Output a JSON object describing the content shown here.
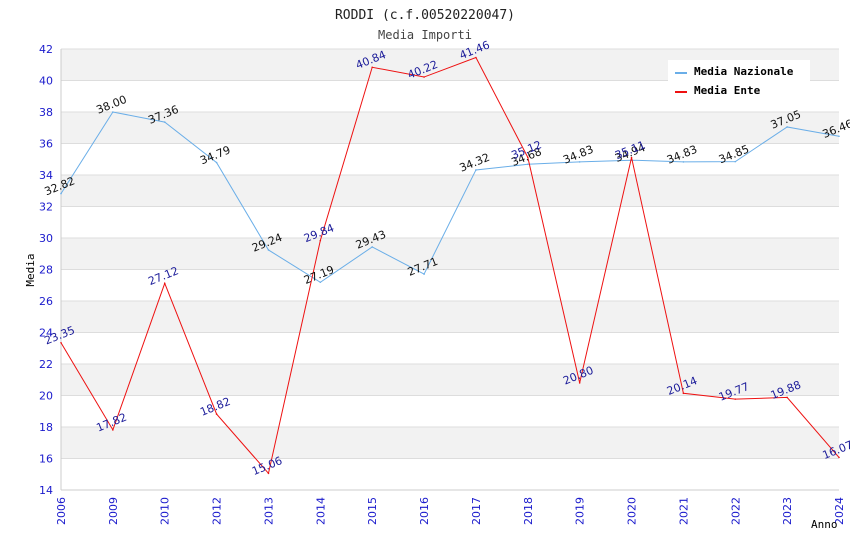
{
  "chart_data": {
    "type": "line",
    "title": "RODDI (c.f.00520220047)",
    "subtitle": "Media Importi",
    "xlabel": "Anno",
    "ylabel": "Media",
    "ylim": [
      14,
      42
    ],
    "yticks": [
      14,
      16,
      18,
      20,
      22,
      24,
      26,
      28,
      30,
      32,
      34,
      36,
      38,
      40,
      42
    ],
    "categories": [
      "2006",
      "2009",
      "2010",
      "2012",
      "2013",
      "2014",
      "2015",
      "2016",
      "2017",
      "2018",
      "2019",
      "2020",
      "2021",
      "2022",
      "2023",
      "2024"
    ],
    "series": [
      {
        "name": "Media Nazionale",
        "color": "#6aaee8",
        "label_color": "#111111",
        "values": [
          32.82,
          38.0,
          37.36,
          34.79,
          29.24,
          27.19,
          29.43,
          27.71,
          34.32,
          34.68,
          34.83,
          34.94,
          34.83,
          34.85,
          37.05,
          36.46
        ],
        "labels": [
          "32.82",
          "38.00",
          "37.36",
          "34.79",
          "29.24",
          "27.19",
          "29.43",
          "27.71",
          "34.32",
          "34.68",
          "34.83",
          "34.94",
          "34.83",
          "34.85",
          "37.05",
          "36.46"
        ]
      },
      {
        "name": "Media Ente",
        "color": "#ee1111",
        "label_color": "#1a1a99",
        "values": [
          23.35,
          17.82,
          27.12,
          18.82,
          15.06,
          29.84,
          40.84,
          40.22,
          41.46,
          35.12,
          20.8,
          35.11,
          20.14,
          19.77,
          19.88,
          16.07
        ],
        "labels": [
          "23.35",
          "17.82",
          "27.12",
          "18.82",
          "15.06",
          "29.84",
          "40.84",
          "40.22",
          "41.46",
          "35.12",
          "20.80",
          "35.11",
          "20.14",
          "19.77",
          "19.88",
          "16.07"
        ]
      }
    ],
    "legend": {
      "position": "top-right"
    },
    "grid": true
  }
}
